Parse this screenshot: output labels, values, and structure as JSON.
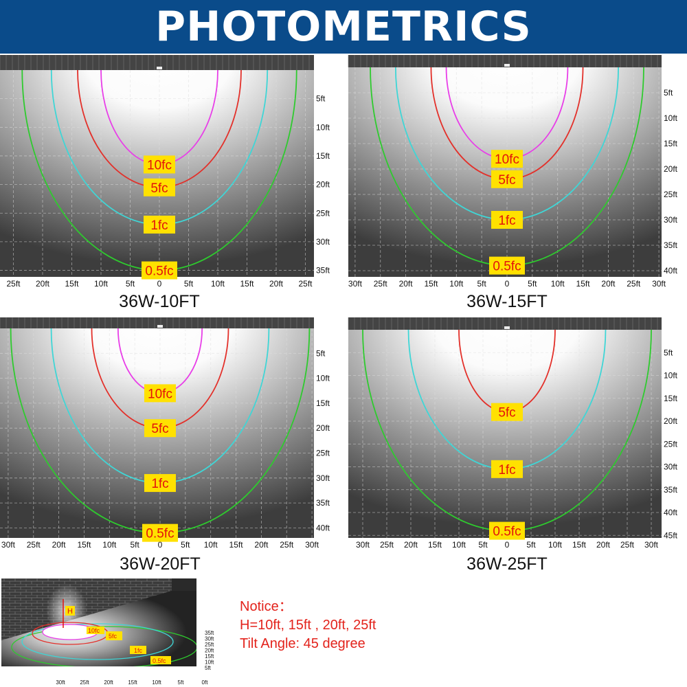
{
  "header": {
    "title": "PHOTOMETRICS"
  },
  "colors": {
    "header_bg": "#0a4b8a",
    "label_bg": "#ffe100",
    "label_text": "#e3120b",
    "contour_10fc": "#e83ee8",
    "contour_5fc": "#e3302a",
    "contour_1fc": "#3fd6d6",
    "contour_05fc": "#2ecb2e"
  },
  "panels": [
    {
      "title": "36W-10FT",
      "x_ticks": [
        "25ft",
        "20ft",
        "15ft",
        "10ft",
        "5ft",
        "0",
        "5ft",
        "10ft",
        "15ft",
        "20ft",
        "25ft"
      ],
      "y_ticks": [
        "5ft",
        "10ft",
        "15ft",
        "20ft",
        "25ft",
        "30ft",
        "35ft"
      ],
      "contours": [
        {
          "label": "10fc",
          "half_width_ft": 10,
          "depth_ft": 16.5,
          "color": "#e83ee8"
        },
        {
          "label": "5fc",
          "half_width_ft": 14,
          "depth_ft": 20.5,
          "color": "#e3302a"
        },
        {
          "label": "1fc",
          "half_width_ft": 18.5,
          "depth_ft": 27,
          "color": "#3fd6d6"
        },
        {
          "label": "0.5fc",
          "half_width_ft": 23.5,
          "depth_ft": 35,
          "color": "#2ecb2e"
        }
      ]
    },
    {
      "title": "36W-15FT",
      "x_ticks": [
        "30ft",
        "25ft",
        "20ft",
        "15ft",
        "10ft",
        "5ft",
        "0",
        "5ft",
        "10ft",
        "15ft",
        "20ft",
        "25ft",
        "30ft"
      ],
      "y_ticks": [
        "5ft",
        "10ft",
        "15ft",
        "20ft",
        "25ft",
        "30ft",
        "35ft",
        "40ft"
      ],
      "contours": [
        {
          "label": "10fc",
          "half_width_ft": 12,
          "depth_ft": 18,
          "color": "#e83ee8"
        },
        {
          "label": "5fc",
          "half_width_ft": 15,
          "depth_ft": 22,
          "color": "#e3302a"
        },
        {
          "label": "1fc",
          "half_width_ft": 22,
          "depth_ft": 30,
          "color": "#3fd6d6"
        },
        {
          "label": "0.5fc",
          "half_width_ft": 27,
          "depth_ft": 39,
          "color": "#2ecb2e"
        }
      ]
    },
    {
      "title": "36W-20FT",
      "x_ticks": [
        "30ft",
        "25ft",
        "20ft",
        "15ft",
        "10ft",
        "5ft",
        "0",
        "5ft",
        "10ft",
        "15ft",
        "20ft",
        "25ft",
        "30ft"
      ],
      "y_ticks": [
        "5ft",
        "10ft",
        "15ft",
        "20ft",
        "25ft",
        "30ft",
        "35ft",
        "40ft"
      ],
      "contours": [
        {
          "label": "10fc",
          "half_width_ft": 8.3,
          "depth_ft": 13,
          "color": "#e83ee8"
        },
        {
          "label": "5fc",
          "half_width_ft": 13.5,
          "depth_ft": 20,
          "color": "#e3302a"
        },
        {
          "label": "1fc",
          "half_width_ft": 21.5,
          "depth_ft": 31,
          "color": "#3fd6d6"
        },
        {
          "label": "0.5fc",
          "half_width_ft": 29.5,
          "depth_ft": 41,
          "color": "#2ecb2e"
        }
      ]
    },
    {
      "title": "36W-25FT",
      "x_ticks": [
        "30ft",
        "25ft",
        "20ft",
        "15ft",
        "10ft",
        "5ft",
        "0",
        "5ft",
        "10ft",
        "15ft",
        "20ft",
        "25ft",
        "30ft"
      ],
      "y_ticks": [
        "5ft",
        "10ft",
        "15ft",
        "20ft",
        "25ft",
        "30ft",
        "35ft",
        "40ft",
        "45ft"
      ],
      "contours": [
        {
          "label": "5fc",
          "half_width_ft": 10,
          "depth_ft": 18,
          "color": "#e3302a"
        },
        {
          "label": "1fc",
          "half_width_ft": 20.5,
          "depth_ft": 30.5,
          "color": "#3fd6d6"
        },
        {
          "label": "0.5fc",
          "half_width_ft": 30,
          "depth_ft": 44,
          "color": "#2ecb2e"
        }
      ]
    }
  ],
  "illustration": {
    "height_marker": "H",
    "labels": [
      "10fc",
      "5fc",
      "1fc",
      "0.5fc"
    ],
    "x_ticks": [
      "30ft",
      "25ft",
      "20ft",
      "15ft",
      "10ft",
      "5ft",
      "0ft"
    ],
    "y_ticks": [
      "35ft",
      "30ft",
      "25ft",
      "20ft",
      "15ft",
      "10ft",
      "5ft"
    ]
  },
  "notice": {
    "heading": "Notice：",
    "heights": "H=10ft, 15ft , 20ft, 25ft",
    "tilt": "Tilt Angle: 45 degree"
  }
}
